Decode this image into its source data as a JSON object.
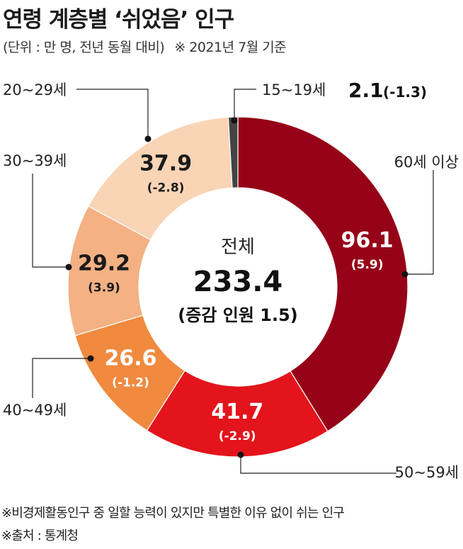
{
  "header": {
    "title": "연령 계층별 ‘쉬었음’ 인구",
    "unit_note": "(단위 : 만 명, 전년 동월 대비)",
    "basis_note": "※ 2021년 7월 기준"
  },
  "footer": {
    "note": "※비경제활동인구 중 일할 능력이 있지만 특별한 이유 없이 쉬는 인구",
    "source": "※출처 : 통계청"
  },
  "chart_data": {
    "type": "pie",
    "donut": true,
    "center": {
      "label": "전체",
      "total": "233.4",
      "change": "(증감 인원 1.5)"
    },
    "slices": [
      {
        "category": "60세 이상",
        "value": 96.1,
        "change": "(5.9)",
        "color": "#960217",
        "value_color": "#ffffff"
      },
      {
        "category": "50~59세",
        "value": 41.7,
        "change": "(-2.9)",
        "color": "#e3141c",
        "value_color": "#ffffff"
      },
      {
        "category": "40~49세",
        "value": 26.6,
        "change": "(-1.2)",
        "color": "#ef8a3f",
        "value_color": "#ffffff"
      },
      {
        "category": "30~39세",
        "value": 29.2,
        "change": "(3.9)",
        "color": "#f3b184",
        "value_color": "#1a1a1a"
      },
      {
        "category": "20~29세",
        "value": 37.9,
        "change": "(-2.8)",
        "color": "#f9d4b5",
        "value_color": "#1a1a1a"
      },
      {
        "category": "15~19세",
        "value": 2.1,
        "change": "(-1.3)",
        "color": "#444444",
        "value_color": "#1a1a1a"
      }
    ],
    "small_slice_value_text": "2.1",
    "small_slice_change_text": "(-1.3)"
  }
}
